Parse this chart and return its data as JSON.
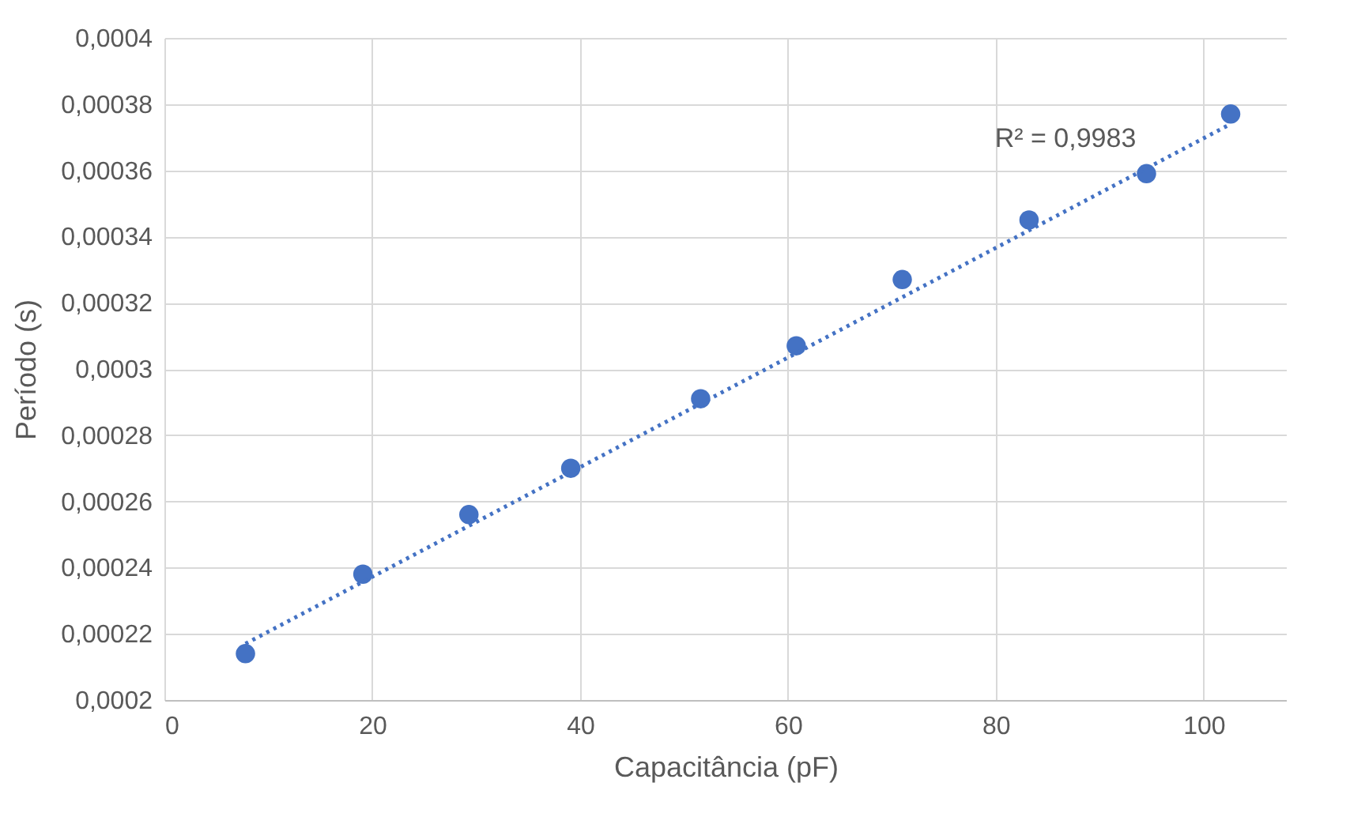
{
  "chart_data": {
    "type": "scatter",
    "xlabel": "Capacitância (pF)",
    "ylabel": "Período (s)",
    "xlim": [
      0,
      108
    ],
    "xticks": [
      0,
      20,
      40,
      60,
      80,
      100
    ],
    "ylim": [
      0.0002,
      0.0004
    ],
    "yticks": [
      {
        "value": 0.0002,
        "label": "0,0002"
      },
      {
        "value": 0.00022,
        "label": "0,00022"
      },
      {
        "value": 0.00024,
        "label": "0,00024"
      },
      {
        "value": 0.00026,
        "label": "0,00026"
      },
      {
        "value": 0.00028,
        "label": "0,00028"
      },
      {
        "value": 0.0003,
        "label": "0,0003"
      },
      {
        "value": 0.00032,
        "label": "0,00032"
      },
      {
        "value": 0.00034,
        "label": "0,00034"
      },
      {
        "value": 0.00036,
        "label": "0,00036"
      },
      {
        "value": 0.00038,
        "label": "0,00038"
      },
      {
        "value": 0.0004,
        "label": "0,0004"
      }
    ],
    "grid": true,
    "series": [
      {
        "marker": "circle",
        "color": "#4472c4",
        "x": [
          7.8,
          19.1,
          29.3,
          39.1,
          51.6,
          60.8,
          71.0,
          83.2,
          94.5,
          102.6
        ],
        "values": [
          0.000214,
          0.000238,
          0.000256,
          0.00027,
          0.000291,
          0.000307,
          0.000327,
          0.000345,
          0.000359,
          0.000377
        ]
      },
      {
        "type": "line",
        "color": "#4472c4",
        "line_style": "dotted",
        "x": [
          7.8,
          102.6
        ],
        "values": [
          0.000217,
          0.000374
        ]
      }
    ],
    "annotations": [
      "R² = 0,9983"
    ]
  }
}
